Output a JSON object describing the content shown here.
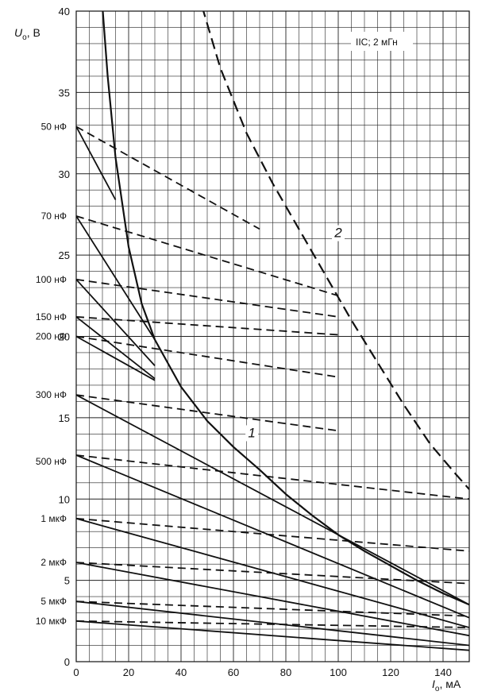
{
  "chart_data": {
    "type": "line",
    "title": "",
    "annotation": "IIC; 2 мГн",
    "ylabel": "U",
    "ylabel_subscript": "o",
    "ylabel_unit": ", В",
    "xlabel": "I",
    "xlabel_subscript": "o",
    "xlabel_unit": ", мА",
    "xlim": [
      0,
      150
    ],
    "ylim": [
      0,
      40
    ],
    "grid": true,
    "x_ticks": [
      "0",
      "20",
      "40",
      "60",
      "80",
      "100",
      "120",
      "140"
    ],
    "y_ticks": [
      "0",
      "5",
      "10",
      "15",
      "20",
      "25",
      "30",
      "35",
      "40"
    ],
    "curve_labels": [
      {
        "text": "1",
        "x": 67,
        "y": 13.8
      },
      {
        "text": "2",
        "x": 100,
        "y": 26.1
      }
    ],
    "capacitance_labels": [
      {
        "text": "50 нФ",
        "y": 32.9
      },
      {
        "text": "70 нФ",
        "y": 27.4
      },
      {
        "text": "100 нФ",
        "y": 23.5
      },
      {
        "text": "150 нФ",
        "y": 21.2
      },
      {
        "text": "200 нФ",
        "y": 20.0
      },
      {
        "text": "300 нФ",
        "y": 16.4
      },
      {
        "text": "500 нФ",
        "y": 12.3
      },
      {
        "text": "1 мкФ",
        "y": 8.8
      },
      {
        "text": "2 мкФ",
        "y": 6.1
      },
      {
        "text": "5 мкФ",
        "y": 3.7
      },
      {
        "text": "10 мкФ",
        "y": 2.5
      }
    ],
    "series": [
      {
        "name": "1",
        "style": "solid-heavy",
        "x": [
          10,
          12,
          15,
          20,
          25,
          30,
          40,
          50,
          60,
          70,
          80,
          90,
          100,
          110,
          120,
          130,
          140,
          150
        ],
        "y": [
          40.3,
          36,
          31,
          25.5,
          22,
          19.8,
          16.9,
          14.8,
          13.2,
          11.8,
          10.3,
          9.0,
          7.8,
          6.8,
          5.9,
          5.0,
          4.2,
          3.5
        ]
      },
      {
        "name": "2",
        "style": "dashed-heavy",
        "x": [
          48,
          55,
          65,
          75,
          85,
          95,
          105,
          115,
          125,
          135,
          145,
          150
        ],
        "y": [
          40.3,
          36.5,
          32.5,
          29.4,
          26.6,
          23.8,
          21.0,
          18.4,
          15.8,
          13.4,
          11.5,
          10.6
        ]
      },
      {
        "name": "50 нФ",
        "style": "solid",
        "x": [
          0,
          15
        ],
        "y": [
          32.9,
          28.4
        ]
      },
      {
        "name": "50 нФ",
        "style": "dashed",
        "x": [
          0,
          70
        ],
        "y": [
          32.9,
          26.6
        ]
      },
      {
        "name": "70 нФ",
        "style": "solid",
        "x": [
          0,
          30
        ],
        "y": [
          27.4,
          19.8
        ]
      },
      {
        "name": "70 нФ",
        "style": "dashed",
        "x": [
          0,
          100
        ],
        "y": [
          27.4,
          22.5
        ]
      },
      {
        "name": "100 нФ",
        "style": "solid",
        "x": [
          0,
          30
        ],
        "y": [
          23.5,
          18.2
        ]
      },
      {
        "name": "100 нФ",
        "style": "dashed",
        "x": [
          0,
          100
        ],
        "y": [
          23.5,
          21.2
        ]
      },
      {
        "name": "150 нФ",
        "style": "solid",
        "x": [
          0,
          30
        ],
        "y": [
          21.2,
          17.4
        ]
      },
      {
        "name": "150 нФ",
        "style": "dashed",
        "x": [
          0,
          100
        ],
        "y": [
          21.2,
          20.1
        ]
      },
      {
        "name": "200 нФ",
        "style": "solid",
        "x": [
          0,
          30
        ],
        "y": [
          20.0,
          17.3
        ]
      },
      {
        "name": "200 нФ",
        "style": "dashed",
        "x": [
          0,
          100
        ],
        "y": [
          20.0,
          17.5
        ]
      },
      {
        "name": "300 нФ",
        "style": "solid",
        "x": [
          0,
          150
        ],
        "y": [
          16.4,
          3.5
        ]
      },
      {
        "name": "300 нФ",
        "style": "dashed",
        "x": [
          0,
          100
        ],
        "y": [
          16.4,
          14.2
        ]
      },
      {
        "name": "500 нФ",
        "style": "solid",
        "x": [
          0,
          150
        ],
        "y": [
          12.7,
          2.7
        ]
      },
      {
        "name": "500 нФ",
        "style": "dashed",
        "x": [
          0,
          150
        ],
        "y": [
          12.7,
          10.0
        ]
      },
      {
        "name": "1 мкФ",
        "style": "solid",
        "x": [
          0,
          150
        ],
        "y": [
          8.8,
          2.1
        ]
      },
      {
        "name": "1 мкФ",
        "style": "dashed",
        "x": [
          0,
          150
        ],
        "y": [
          8.8,
          6.8
        ]
      },
      {
        "name": "2 мкФ",
        "style": "solid",
        "x": [
          0,
          150
        ],
        "y": [
          6.1,
          1.6
        ]
      },
      {
        "name": "2 мкФ",
        "style": "dashed",
        "x": [
          0,
          150
        ],
        "y": [
          6.1,
          4.8
        ]
      },
      {
        "name": "5 мкФ",
        "style": "solid",
        "x": [
          0,
          150
        ],
        "y": [
          3.7,
          1.0
        ]
      },
      {
        "name": "5 мкФ",
        "style": "dashed",
        "x": [
          0,
          150
        ],
        "y": [
          3.7,
          2.8
        ]
      },
      {
        "name": "10 мкФ",
        "style": "solid",
        "x": [
          0,
          150
        ],
        "y": [
          2.5,
          0.7
        ]
      },
      {
        "name": "10 мкФ",
        "style": "dashed",
        "x": [
          0,
          150
        ],
        "y": [
          2.5,
          2.1
        ]
      }
    ]
  }
}
